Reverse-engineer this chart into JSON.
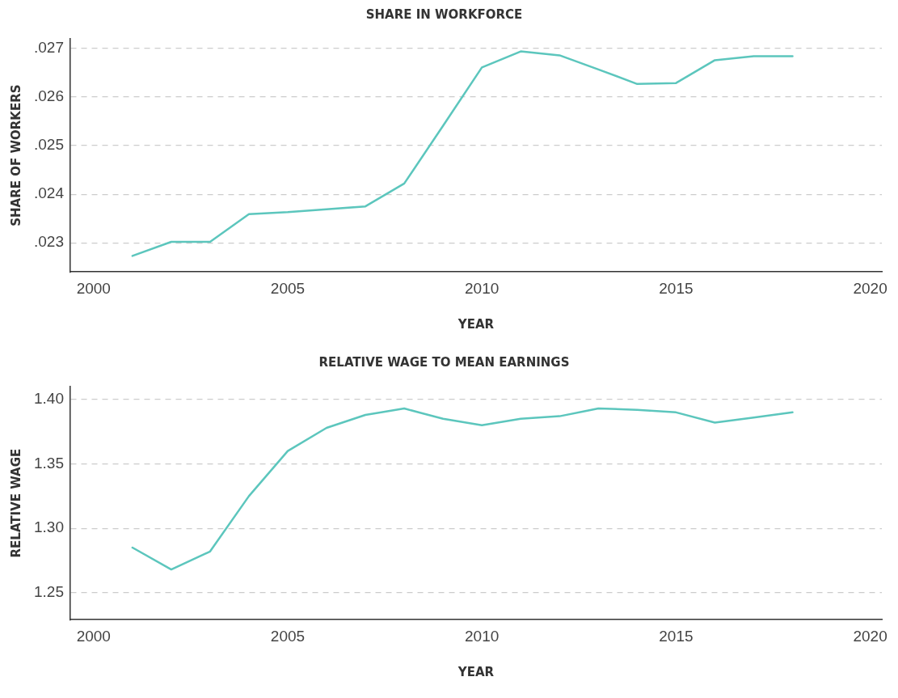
{
  "chart_data": [
    {
      "type": "line",
      "title": "SHARE IN WORKFORCE",
      "xlabel": "YEAR",
      "ylabel": "SHARE OF WORKERS",
      "x": [
        2001,
        2002,
        2003,
        2004,
        2005,
        2006,
        2007,
        2008,
        2009,
        2010,
        2011,
        2012,
        2013,
        2014,
        2015,
        2016,
        2017,
        2018
      ],
      "series": [
        {
          "color": "#5cc6bd",
          "values": [
            0.02273,
            0.02302,
            0.02302,
            0.02359,
            0.02363,
            0.02369,
            0.02375,
            0.02422,
            0.02541,
            0.02661,
            0.02694,
            0.02686,
            0.02657,
            0.02627,
            0.02629,
            0.02676,
            0.02684,
            0.02684
          ]
        }
      ],
      "xlim": [
        1999.4,
        2020.3
      ],
      "xticks": [
        2000,
        2005,
        2010,
        2015,
        2020
      ],
      "ylim": [
        0.0224,
        0.0272
      ],
      "yticks": [
        {
          "value": 0.023,
          "label": ".023"
        },
        {
          "value": 0.024,
          "label": ".024"
        },
        {
          "value": 0.025,
          "label": ".025"
        },
        {
          "value": 0.026,
          "label": ".026"
        },
        {
          "value": 0.027,
          "label": ".027"
        }
      ],
      "grid": "y",
      "legend": false,
      "marker": "none",
      "line_style": "solid"
    },
    {
      "type": "line",
      "title": "RELATIVE WAGE TO MEAN EARNINGS",
      "xlabel": "YEAR",
      "ylabel": "RELATIVE WAGE",
      "x": [
        2001,
        2002,
        2003,
        2004,
        2005,
        2006,
        2007,
        2008,
        2009,
        2010,
        2011,
        2012,
        2013,
        2014,
        2015,
        2016,
        2017,
        2018
      ],
      "series": [
        {
          "color": "#5cc6bd",
          "values": [
            1.285,
            1.268,
            1.282,
            1.325,
            1.36,
            1.378,
            1.388,
            1.393,
            1.385,
            1.38,
            1.385,
            1.387,
            1.393,
            1.392,
            1.39,
            1.382,
            1.386,
            1.39
          ]
        }
      ],
      "xlim": [
        1999.4,
        2020.3
      ],
      "xticks": [
        2000,
        2005,
        2010,
        2015,
        2020
      ],
      "ylim": [
        1.229,
        1.41
      ],
      "yticks": [
        {
          "value": 1.25,
          "label": "1.25"
        },
        {
          "value": 1.3,
          "label": "1.30"
        },
        {
          "value": 1.35,
          "label": "1.35"
        },
        {
          "value": 1.4,
          "label": "1.40"
        }
      ],
      "grid": "y",
      "legend": false,
      "marker": "none",
      "line_style": "solid"
    }
  ]
}
